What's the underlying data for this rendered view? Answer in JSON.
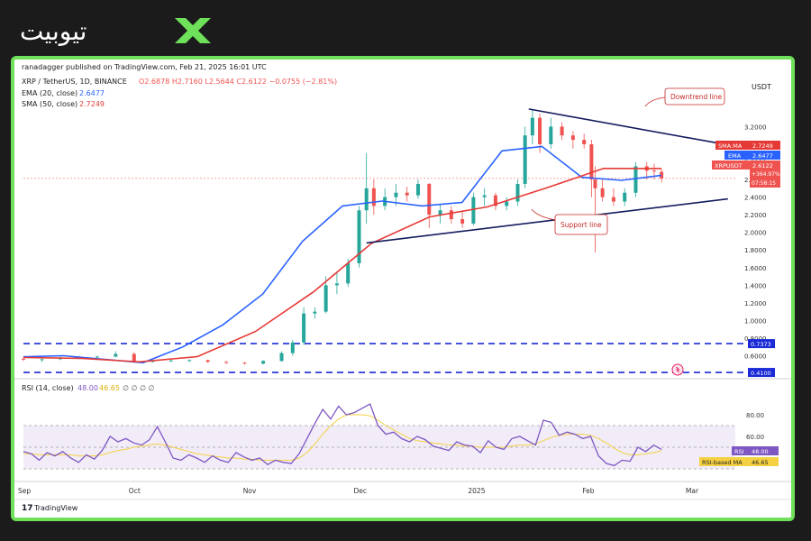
{
  "brand": {
    "logo_text": "تیوبیت"
  },
  "header": {
    "publisher": "ranadagger published on TradingView.com, Feb 21, 2025 16:01 UTC",
    "symbol": "XRP / TetherUS, 1D, BINANCE",
    "ohlc": "O2.6878  H2.7160  L2.5644  C2.6122  −0.0755 (−2.81%)",
    "ema_label": "EMA (20, close)",
    "ema_value": "2.6477",
    "sma_label": "SMA (50, close)",
    "sma_value": "2.7249"
  },
  "footer": {
    "brand": "TradingView"
  },
  "colors": {
    "up": "#26a69a",
    "down": "#ef5350",
    "ema": "#2962ff",
    "sma": "#e53935",
    "level": "#1a2ad6",
    "trend": "#131c5e",
    "rsi": "#7e57c2",
    "rsi_ma": "#f5d142",
    "border": "#6ee05a",
    "annotation": "#c62828"
  },
  "chart_data": [
    {
      "type": "candlestick",
      "currency_label": "USDT",
      "x_ticks": [
        "Sep",
        "Oct",
        "Nov",
        "Dec",
        "2025",
        "Feb",
        "Mar"
      ],
      "y_ticks": [
        "3.2000",
        "3.0000",
        "2.8000",
        "2.6000",
        "2.4000",
        "2.2000",
        "2.0000",
        "1.8000",
        "1.6000",
        "1.4000",
        "1.2000",
        "1.0000",
        "0.8000",
        "0.6000"
      ],
      "ylim": [
        0.38,
        3.45
      ],
      "price_tags": {
        "sma": {
          "label": "SMA:MA",
          "value": "2.7249"
        },
        "ema": {
          "label": "EMA",
          "value": "2.6477"
        },
        "last": {
          "label": "XRPUSDT",
          "value": "2.6122",
          "change": "+364.97%",
          "countdown": "07:58:15"
        }
      },
      "levels": [
        {
          "value": 0.7373,
          "label": "0.7373"
        },
        {
          "value": 0.41,
          "label": "0.4100"
        }
      ],
      "annotations": [
        "Downtrend line",
        "Support line"
      ],
      "trendlines": [
        {
          "name": "downtrend",
          "from": [
            "2025-01-16",
            3.4
          ],
          "to": [
            "2025-03-10",
            3.0
          ]
        },
        {
          "name": "support",
          "from": [
            "2024-12-03",
            1.88
          ],
          "to": [
            "2025-03-11",
            2.38
          ]
        }
      ],
      "ohlc": [
        {
          "date": "2024-09-01",
          "o": 0.565,
          "h": 0.585,
          "l": 0.54,
          "c": 0.555
        },
        {
          "date": "2024-09-06",
          "o": 0.555,
          "h": 0.57,
          "l": 0.53,
          "c": 0.56
        },
        {
          "date": "2024-09-11",
          "o": 0.56,
          "h": 0.59,
          "l": 0.55,
          "c": 0.575
        },
        {
          "date": "2024-09-16",
          "o": 0.575,
          "h": 0.6,
          "l": 0.56,
          "c": 0.585
        },
        {
          "date": "2024-09-21",
          "o": 0.585,
          "h": 0.6,
          "l": 0.57,
          "c": 0.59
        },
        {
          "date": "2024-09-26",
          "o": 0.59,
          "h": 0.65,
          "l": 0.58,
          "c": 0.62
        },
        {
          "date": "2024-10-01",
          "o": 0.62,
          "h": 0.64,
          "l": 0.52,
          "c": 0.53
        },
        {
          "date": "2024-10-06",
          "o": 0.53,
          "h": 0.55,
          "l": 0.52,
          "c": 0.54
        },
        {
          "date": "2024-10-11",
          "o": 0.54,
          "h": 0.555,
          "l": 0.53,
          "c": 0.545
        },
        {
          "date": "2024-10-16",
          "o": 0.545,
          "h": 0.56,
          "l": 0.53,
          "c": 0.55
        },
        {
          "date": "2024-10-21",
          "o": 0.55,
          "h": 0.555,
          "l": 0.52,
          "c": 0.53
        },
        {
          "date": "2024-10-26",
          "o": 0.53,
          "h": 0.54,
          "l": 0.505,
          "c": 0.52
        },
        {
          "date": "2024-10-31",
          "o": 0.52,
          "h": 0.53,
          "l": 0.5,
          "c": 0.51
        },
        {
          "date": "2024-11-05",
          "o": 0.51,
          "h": 0.55,
          "l": 0.5,
          "c": 0.54
        },
        {
          "date": "2024-11-10",
          "o": 0.54,
          "h": 0.65,
          "l": 0.53,
          "c": 0.63
        },
        {
          "date": "2024-11-13",
          "o": 0.63,
          "h": 0.78,
          "l": 0.6,
          "c": 0.75
        },
        {
          "date": "2024-11-16",
          "o": 0.75,
          "h": 1.15,
          "l": 0.72,
          "c": 1.08
        },
        {
          "date": "2024-11-19",
          "o": 1.08,
          "h": 1.15,
          "l": 1.02,
          "c": 1.1
        },
        {
          "date": "2024-11-22",
          "o": 1.1,
          "h": 1.5,
          "l": 1.08,
          "c": 1.4
        },
        {
          "date": "2024-11-25",
          "o": 1.4,
          "h": 1.55,
          "l": 1.3,
          "c": 1.42
        },
        {
          "date": "2024-11-28",
          "o": 1.42,
          "h": 1.7,
          "l": 1.38,
          "c": 1.65
        },
        {
          "date": "2024-12-01",
          "o": 1.65,
          "h": 2.3,
          "l": 1.6,
          "c": 2.25
        },
        {
          "date": "2024-12-03",
          "o": 2.25,
          "h": 2.9,
          "l": 2.1,
          "c": 2.5
        },
        {
          "date": "2024-12-05",
          "o": 2.5,
          "h": 2.6,
          "l": 2.2,
          "c": 2.3
        },
        {
          "date": "2024-12-08",
          "o": 2.3,
          "h": 2.5,
          "l": 2.25,
          "c": 2.4
        },
        {
          "date": "2024-12-11",
          "o": 2.4,
          "h": 2.55,
          "l": 2.3,
          "c": 2.45
        },
        {
          "date": "2024-12-14",
          "o": 2.45,
          "h": 2.52,
          "l": 2.35,
          "c": 2.42
        },
        {
          "date": "2024-12-17",
          "o": 2.42,
          "h": 2.6,
          "l": 2.38,
          "c": 2.55
        },
        {
          "date": "2024-12-20",
          "o": 2.55,
          "h": 2.56,
          "l": 2.05,
          "c": 2.2
        },
        {
          "date": "2024-12-23",
          "o": 2.2,
          "h": 2.32,
          "l": 2.1,
          "c": 2.25
        },
        {
          "date": "2024-12-26",
          "o": 2.25,
          "h": 2.3,
          "l": 2.1,
          "c": 2.15
        },
        {
          "date": "2024-12-29",
          "o": 2.15,
          "h": 2.25,
          "l": 2.05,
          "c": 2.1
        },
        {
          "date": "2025-01-01",
          "o": 2.1,
          "h": 2.45,
          "l": 2.08,
          "c": 2.4
        },
        {
          "date": "2025-01-04",
          "o": 2.4,
          "h": 2.5,
          "l": 2.3,
          "c": 2.42
        },
        {
          "date": "2025-01-07",
          "o": 2.42,
          "h": 2.45,
          "l": 2.25,
          "c": 2.3
        },
        {
          "date": "2025-01-10",
          "o": 2.3,
          "h": 2.4,
          "l": 2.25,
          "c": 2.35
        },
        {
          "date": "2025-01-13",
          "o": 2.35,
          "h": 2.6,
          "l": 2.3,
          "c": 2.55
        },
        {
          "date": "2025-01-15",
          "o": 2.55,
          "h": 3.2,
          "l": 2.5,
          "c": 3.1
        },
        {
          "date": "2025-01-17",
          "o": 3.1,
          "h": 3.4,
          "l": 3.0,
          "c": 3.3
        },
        {
          "date": "2025-01-19",
          "o": 3.3,
          "h": 3.35,
          "l": 2.9,
          "c": 3.0
        },
        {
          "date": "2025-01-22",
          "o": 3.0,
          "h": 3.3,
          "l": 2.95,
          "c": 3.2
        },
        {
          "date": "2025-01-25",
          "o": 3.2,
          "h": 3.25,
          "l": 3.05,
          "c": 3.1
        },
        {
          "date": "2025-01-28",
          "o": 3.1,
          "h": 3.15,
          "l": 2.95,
          "c": 3.05
        },
        {
          "date": "2025-01-31",
          "o": 3.05,
          "h": 3.12,
          "l": 2.95,
          "c": 3.0
        },
        {
          "date": "2025-02-02",
          "o": 3.0,
          "h": 3.05,
          "l": 2.4,
          "c": 2.6
        },
        {
          "date": "2025-02-03",
          "o": 2.6,
          "h": 2.75,
          "l": 1.77,
          "c": 2.5
        },
        {
          "date": "2025-02-05",
          "o": 2.5,
          "h": 2.6,
          "l": 2.35,
          "c": 2.4
        },
        {
          "date": "2025-02-08",
          "o": 2.4,
          "h": 2.5,
          "l": 2.3,
          "c": 2.35
        },
        {
          "date": "2025-02-11",
          "o": 2.35,
          "h": 2.5,
          "l": 2.3,
          "c": 2.45
        },
        {
          "date": "2025-02-14",
          "o": 2.45,
          "h": 2.8,
          "l": 2.4,
          "c": 2.75
        },
        {
          "date": "2025-02-17",
          "o": 2.75,
          "h": 2.8,
          "l": 2.6,
          "c": 2.7
        },
        {
          "date": "2025-02-19",
          "o": 2.7,
          "h": 2.78,
          "l": 2.6,
          "c": 2.69
        },
        {
          "date": "2025-02-21",
          "o": 2.6878,
          "h": 2.716,
          "l": 2.5644,
          "c": 2.6122
        }
      ],
      "ema20": [
        [
          0.575,
          0.6
        ],
        [
          0.58,
          0.62
        ],
        [
          0.52,
          0.6
        ],
        [
          0.51,
          0.53
        ],
        [
          0.7,
          0.7
        ],
        [
          1.0,
          0.9
        ],
        [
          1.4,
          1.2
        ],
        [
          2.0,
          1.8
        ],
        [
          2.3,
          2.3
        ],
        [
          2.36,
          2.35
        ],
        [
          2.3,
          2.3
        ],
        [
          2.33,
          2.35
        ],
        [
          2.9,
          2.95
        ],
        [
          2.95,
          3.0
        ],
        [
          2.6,
          2.65
        ],
        [
          2.58,
          2.6
        ],
        [
          2.6477,
          2.6477
        ]
      ],
      "sma50": [
        [
          0.57,
          0.59
        ],
        [
          0.56,
          0.58
        ],
        [
          0.52,
          0.54
        ],
        [
          0.6,
          0.58
        ],
        [
          0.9,
          0.85
        ],
        [
          1.3,
          1.35
        ],
        [
          1.9,
          1.85
        ],
        [
          2.2,
          2.15
        ],
        [
          2.3,
          2.28
        ],
        [
          2.5,
          2.5
        ],
        [
          2.7,
          2.75
        ],
        [
          2.7249,
          2.7249
        ]
      ]
    },
    {
      "type": "line",
      "title": "RSI (14, close)",
      "rsi_value": "48.00",
      "rsi_ma_value": "46.65",
      "placeholders": "∅  ∅  ∅  ∅",
      "y_ticks": [
        "80.00",
        "60.00"
      ],
      "ylim": [
        20,
        100
      ],
      "bands": [
        30,
        50,
        70
      ],
      "tags": {
        "rsi": {
          "label": "RSI",
          "value": "48.00"
        },
        "rsi_ma": {
          "label": "RSI-based MA",
          "value": "46.65"
        }
      },
      "rsi": [
        46,
        44,
        38,
        45,
        42,
        46,
        40,
        36,
        43,
        39,
        47,
        60,
        55,
        58,
        54,
        52,
        57,
        69,
        55,
        40,
        38,
        43,
        40,
        36,
        42,
        38,
        36,
        45,
        41,
        38,
        40,
        34,
        38,
        36,
        35,
        44,
        58,
        72,
        85,
        76,
        88,
        80,
        82,
        86,
        90,
        70,
        62,
        64,
        58,
        55,
        60,
        57,
        51,
        49,
        47,
        55,
        52,
        51,
        45,
        56,
        50,
        48,
        58,
        60,
        56,
        52,
        75,
        73,
        61,
        64,
        62,
        58,
        60,
        42,
        35,
        33,
        38,
        37,
        50,
        46,
        52,
        48
      ],
      "rsi_ma": [
        44,
        44,
        43,
        43,
        43,
        43,
        43,
        42,
        42,
        42,
        43,
        45,
        47,
        48,
        50,
        51,
        52,
        53,
        52,
        50,
        48,
        46,
        44,
        43,
        42,
        41,
        40,
        40,
        39,
        39,
        38,
        38,
        38,
        38,
        38,
        40,
        45,
        53,
        62,
        70,
        76,
        80,
        80,
        80,
        79,
        75,
        70,
        66,
        62,
        58,
        56,
        55,
        54,
        53,
        52,
        52,
        51,
        51,
        50,
        50,
        50,
        50,
        51,
        52,
        52,
        53,
        56,
        59,
        61,
        62,
        62,
        62,
        61,
        58,
        54,
        49,
        45,
        43,
        43,
        44,
        45,
        46.65
      ]
    }
  ]
}
